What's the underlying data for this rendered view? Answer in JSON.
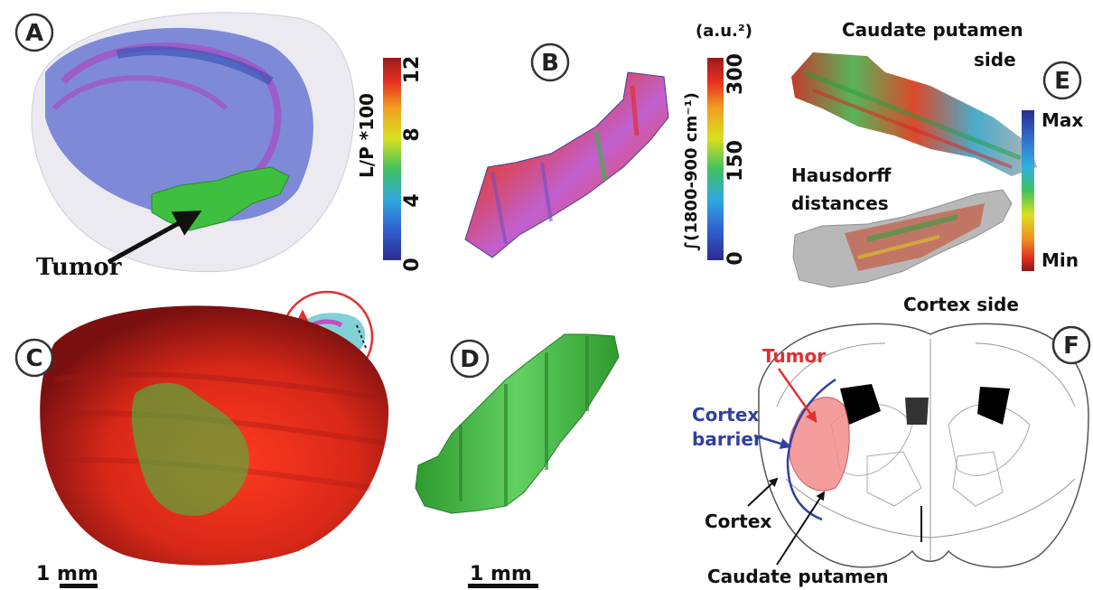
{
  "panels": {
    "a": {
      "letter": "A",
      "annotation": "Tumor"
    },
    "b": {
      "letter": "B"
    },
    "c": {
      "letter": "C"
    },
    "d": {
      "letter": "D"
    },
    "e": {
      "letter": "E"
    },
    "f": {
      "letter": "F"
    }
  },
  "colorbar_a": {
    "label": "L/P *100",
    "ticks": [
      "0",
      "4",
      "8",
      "12"
    ]
  },
  "colorbar_b": {
    "unit": "(a.u.²)",
    "label": "∫(1800-900 cm⁻¹)",
    "ticks": [
      "0",
      "150",
      "300"
    ]
  },
  "colorbar_e": {
    "max_label": "Max",
    "min_label": "Min",
    "title_line1": "Hausdorff",
    "title_line2": "distances"
  },
  "panel_e_labels": {
    "top_line1": "Caudate putamen",
    "top_line2": "side",
    "bottom": "Cortex side"
  },
  "panel_f_labels": {
    "tumor": "Tumor",
    "barrier_line1": "Cortex",
    "barrier_line2": "barrier",
    "cortex": "Cortex",
    "caudate": "Caudate putamen"
  },
  "scalebar_c": "1 mm",
  "scalebar_d": "1 mm",
  "colors": {
    "tumor_green": "#3fbf3f",
    "brain_red": "#d8281c",
    "barrier_blue": "#3040a0",
    "tumor_label_red": "#e03030"
  }
}
